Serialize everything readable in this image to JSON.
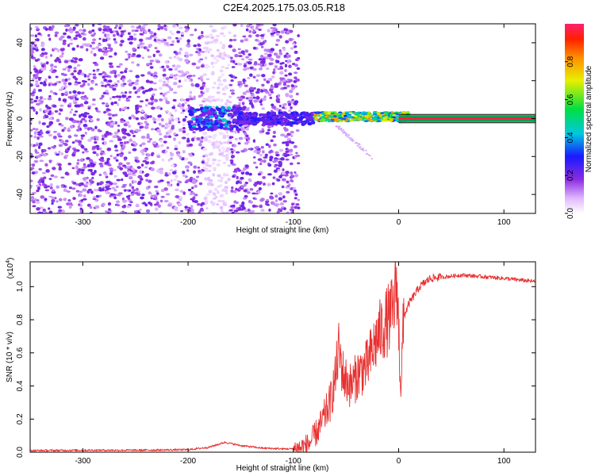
{
  "title": "C2E4.2025.175.03.05.R18",
  "chart_data": [
    {
      "type": "heatmap",
      "xlabel": "Height of straight line (km)",
      "ylabel": "Frequency (Hz)",
      "xlim": [
        -350,
        130
      ],
      "ylim": [
        -50,
        50
      ],
      "xticks": [
        -300,
        -200,
        -100,
        0,
        100
      ],
      "yticks": [
        -40,
        -20,
        0,
        20,
        40
      ],
      "colorbar": {
        "label": "Normalized spectral amplitude",
        "range": [
          0,
          1
        ],
        "ticks": [
          0.0,
          0.2,
          0.4,
          0.6,
          0.8
        ]
      },
      "bands": [
        {
          "x_start": -350,
          "x_end": -95,
          "content": "noise"
        },
        {
          "x_start": -200,
          "x_end": -80,
          "center_hz": 0,
          "content": "broadband feature"
        },
        {
          "x_start": -80,
          "x_end": 10,
          "center_hz": 1,
          "content": "narrowband carrier"
        },
        {
          "x_start": 0,
          "x_end": 130,
          "center_hz": 0,
          "content": "pure carrier tone"
        }
      ]
    },
    {
      "type": "line",
      "xlabel": "Height of straight line (km)",
      "ylabel": "SNR (10 * v/v)",
      "scale_label": "(x10",
      "scale_exp": "4",
      "xlim": [
        -350,
        130
      ],
      "ylim": [
        0,
        1.15
      ],
      "xticks": [
        -300,
        -200,
        -100,
        0,
        100
      ],
      "yticks": [
        0.0,
        0.2,
        0.4,
        0.6,
        0.8,
        1.0
      ],
      "series_color": "#e83030",
      "x": [
        -350,
        -300,
        -250,
        -200,
        -180,
        -165,
        -150,
        -130,
        -110,
        -95,
        -85,
        -75,
        -65,
        -60,
        -57,
        -52,
        -45,
        -38,
        -30,
        -20,
        -10,
        -5,
        -2,
        0,
        2,
        5,
        10,
        20,
        30,
        45,
        60,
        80,
        100,
        130
      ],
      "y": [
        0.01,
        0.012,
        0.012,
        0.015,
        0.03,
        0.06,
        0.04,
        0.025,
        0.02,
        0.02,
        0.05,
        0.15,
        0.3,
        0.45,
        0.62,
        0.45,
        0.4,
        0.48,
        0.52,
        0.7,
        0.8,
        0.85,
        1.05,
        0.75,
        0.4,
        0.82,
        0.9,
        1.0,
        1.05,
        1.06,
        1.07,
        1.06,
        1.05,
        1.03
      ]
    }
  ]
}
